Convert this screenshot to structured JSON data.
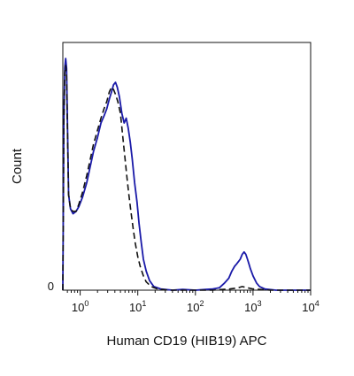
{
  "chart_data": {
    "type": "line",
    "title": "",
    "xlabel": "Human CD19 (HIB19) APC",
    "ylabel": "Count",
    "x_scale": "log",
    "xlim": [
      0.5,
      10000
    ],
    "ylim": [
      0,
      100
    ],
    "grid": false,
    "legend": "none",
    "x_tick_labels": [
      {
        "base": "10",
        "exp": "0",
        "value": 1
      },
      {
        "base": "10",
        "exp": "1",
        "value": 10
      },
      {
        "base": "10",
        "exp": "2",
        "value": 100
      },
      {
        "base": "10",
        "exp": "3",
        "value": 1000
      },
      {
        "base": "10",
        "exp": "4",
        "value": 10000
      }
    ],
    "y_tick_labels": [
      {
        "text": "0",
        "value": 0
      }
    ],
    "series": [
      {
        "style": "solid",
        "color": "#1a1aa8",
        "points": [
          [
            0.5,
            0
          ],
          [
            0.52,
            70
          ],
          [
            0.54,
            93
          ],
          [
            0.56,
            97
          ],
          [
            0.58,
            93
          ],
          [
            0.6,
            70
          ],
          [
            0.63,
            40
          ],
          [
            0.68,
            34
          ],
          [
            0.75,
            32
          ],
          [
            0.85,
            33
          ],
          [
            0.95,
            35
          ],
          [
            1.1,
            39
          ],
          [
            1.3,
            45
          ],
          [
            1.5,
            52
          ],
          [
            1.7,
            58
          ],
          [
            2.0,
            64
          ],
          [
            2.3,
            70
          ],
          [
            2.6,
            73
          ],
          [
            2.9,
            76
          ],
          [
            3.2,
            80
          ],
          [
            3.5,
            83
          ],
          [
            3.8,
            86
          ],
          [
            4.1,
            87
          ],
          [
            4.4,
            85
          ],
          [
            4.8,
            81
          ],
          [
            5.3,
            74
          ],
          [
            5.8,
            70
          ],
          [
            6.3,
            72
          ],
          [
            6.8,
            68
          ],
          [
            7.4,
            62
          ],
          [
            8.0,
            55
          ],
          [
            8.8,
            45
          ],
          [
            9.7,
            37
          ],
          [
            10.5,
            28
          ],
          [
            11.5,
            20
          ],
          [
            12.5,
            13
          ],
          [
            14,
            8
          ],
          [
            16,
            4
          ],
          [
            19,
            1.5
          ],
          [
            25,
            0.5
          ],
          [
            40,
            0
          ],
          [
            60,
            0.3
          ],
          [
            100,
            0
          ],
          [
            150,
            0.3
          ],
          [
            200,
            0.5
          ],
          [
            260,
            1
          ],
          [
            320,
            3
          ],
          [
            380,
            5
          ],
          [
            430,
            8
          ],
          [
            480,
            10
          ],
          [
            520,
            11
          ],
          [
            560,
            12
          ],
          [
            600,
            13
          ],
          [
            650,
            15
          ],
          [
            700,
            16
          ],
          [
            750,
            15
          ],
          [
            800,
            13
          ],
          [
            850,
            11
          ],
          [
            900,
            9
          ],
          [
            1000,
            6
          ],
          [
            1150,
            3
          ],
          [
            1300,
            1.5
          ],
          [
            1600,
            0.5
          ],
          [
            2500,
            0
          ],
          [
            5000,
            0
          ],
          [
            10000,
            0
          ]
        ]
      },
      {
        "style": "dashed",
        "color": "#111111",
        "points": [
          [
            0.5,
            0
          ],
          [
            0.52,
            70
          ],
          [
            0.54,
            91
          ],
          [
            0.56,
            94
          ],
          [
            0.58,
            90
          ],
          [
            0.6,
            68
          ],
          [
            0.63,
            40
          ],
          [
            0.68,
            34
          ],
          [
            0.75,
            33
          ],
          [
            0.85,
            33
          ],
          [
            0.95,
            36
          ],
          [
            1.1,
            41
          ],
          [
            1.3,
            48
          ],
          [
            1.5,
            55
          ],
          [
            1.7,
            61
          ],
          [
            2.0,
            67
          ],
          [
            2.3,
            72
          ],
          [
            2.6,
            76
          ],
          [
            2.9,
            79
          ],
          [
            3.2,
            83
          ],
          [
            3.5,
            85
          ],
          [
            3.8,
            84
          ],
          [
            4.1,
            82
          ],
          [
            4.5,
            79
          ],
          [
            5.0,
            74
          ],
          [
            5.5,
            64
          ],
          [
            6.0,
            55
          ],
          [
            6.5,
            47
          ],
          [
            7.0,
            40
          ],
          [
            7.6,
            33
          ],
          [
            8.3,
            26
          ],
          [
            9.0,
            20
          ],
          [
            10,
            14
          ],
          [
            11,
            10
          ],
          [
            12.5,
            6
          ],
          [
            14,
            3.5
          ],
          [
            17,
            1.5
          ],
          [
            22,
            0.5
          ],
          [
            35,
            0
          ],
          [
            200,
            0
          ],
          [
            400,
            0.5
          ],
          [
            550,
            1
          ],
          [
            650,
            1.5
          ],
          [
            800,
            1
          ],
          [
            1000,
            0.5
          ],
          [
            2000,
            0
          ],
          [
            10000,
            0
          ]
        ]
      }
    ]
  }
}
